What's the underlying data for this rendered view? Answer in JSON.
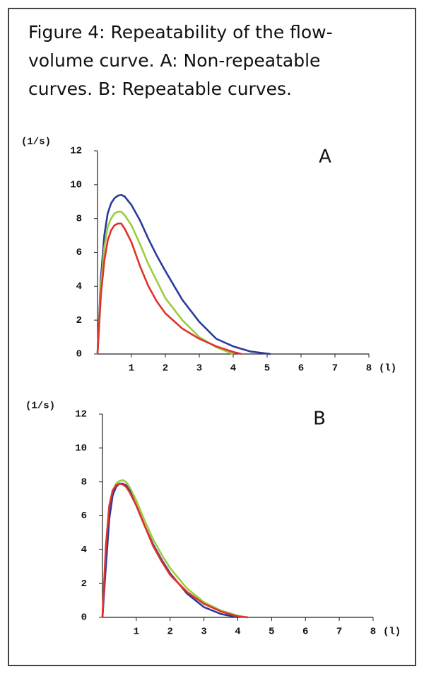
{
  "caption": [
    "Figure 4: Repeatability of the flow-",
    "volume curve. A: Non-repeatable",
    "curves. B: Repeatable curves."
  ],
  "chart_data": [
    {
      "type": "line",
      "title": "A",
      "y_label": "(1/s)",
      "x_label": "(l)",
      "xlim": [
        0,
        8
      ],
      "ylim": [
        0,
        12
      ],
      "xticks": [
        1,
        2,
        3,
        4,
        5,
        6,
        7,
        8
      ],
      "yticks": [
        0,
        2,
        4,
        6,
        8,
        10,
        12
      ],
      "x": [
        0,
        0.1,
        0.2,
        0.3,
        0.4,
        0.5,
        0.6,
        0.7,
        0.8,
        1.0,
        1.25,
        1.5,
        1.75,
        2,
        2.5,
        3,
        3.5,
        4,
        4.25,
        4.5,
        5.1
      ],
      "series": [
        {
          "color": "#2b3a9c",
          "values": [
            0,
            4.5,
            7,
            8.3,
            8.9,
            9.2,
            9.35,
            9.4,
            9.3,
            8.8,
            7.9,
            6.8,
            5.8,
            4.9,
            3.2,
            1.9,
            0.9,
            0.45,
            0.3,
            0.15,
            0
          ]
        },
        {
          "color": "#9ccc3c",
          "values": [
            0,
            4,
            6.3,
            7.5,
            8.0,
            8.3,
            8.4,
            8.4,
            8.2,
            7.6,
            6.5,
            5.3,
            4.3,
            3.3,
            2.0,
            1.0,
            0.4,
            0,
            null,
            null,
            null
          ]
        },
        {
          "color": "#e0322b",
          "values": [
            0,
            3.5,
            5.5,
            6.7,
            7.3,
            7.6,
            7.7,
            7.7,
            7.4,
            6.6,
            5.2,
            4.0,
            3.1,
            2.4,
            1.5,
            0.9,
            0.45,
            0.12,
            0,
            null,
            null
          ]
        }
      ]
    },
    {
      "type": "line",
      "title": "B",
      "y_label": "(1/s)",
      "x_label": "(l)",
      "xlim": [
        0,
        8
      ],
      "ylim": [
        0,
        12
      ],
      "xticks": [
        1,
        2,
        3,
        4,
        5,
        6,
        7,
        8
      ],
      "yticks": [
        0,
        2,
        4,
        6,
        8,
        10,
        12
      ],
      "x": [
        0,
        0.1,
        0.2,
        0.3,
        0.4,
        0.5,
        0.6,
        0.7,
        0.8,
        1.0,
        1.25,
        1.5,
        1.75,
        2,
        2.5,
        3,
        3.5,
        4,
        4.3
      ],
      "series": [
        {
          "color": "#9ccc3c",
          "values": [
            0,
            3.8,
            6.2,
            7.4,
            7.9,
            8.05,
            8.1,
            8.0,
            7.7,
            6.9,
            5.7,
            4.6,
            3.7,
            2.9,
            1.7,
            0.9,
            0.4,
            0.1,
            0
          ]
        },
        {
          "color": "#2b3a9c",
          "values": [
            0,
            3.0,
            5.8,
            7.2,
            7.7,
            7.9,
            7.9,
            7.8,
            7.5,
            6.6,
            5.4,
            4.3,
            3.4,
            2.6,
            1.4,
            0.6,
            0.2,
            0,
            null
          ]
        },
        {
          "color": "#e0322b",
          "values": [
            0,
            4.2,
            6.6,
            7.5,
            7.8,
            7.9,
            7.85,
            7.7,
            7.4,
            6.6,
            5.4,
            4.2,
            3.3,
            2.5,
            1.5,
            0.8,
            0.35,
            0.06,
            0
          ]
        }
      ]
    }
  ]
}
